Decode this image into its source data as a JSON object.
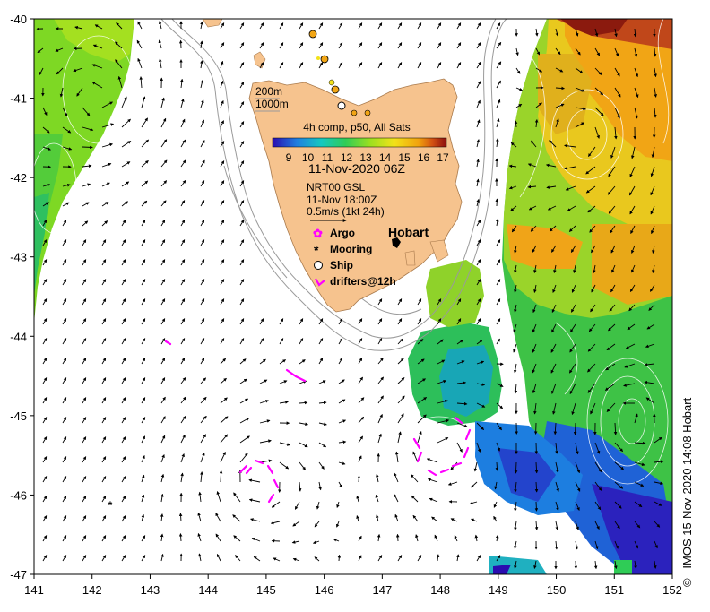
{
  "map": {
    "xaxis_ticks": [
      "141",
      "142",
      "143",
      "144",
      "145",
      "146",
      "147",
      "148",
      "149",
      "150",
      "151",
      "152"
    ],
    "yaxis_ticks": [
      "-40",
      "-41",
      "-42",
      "-43",
      "-44",
      "-45",
      "-46",
      "-47"
    ],
    "lon_range": [
      141,
      152
    ],
    "lat_range": [
      -47,
      -40
    ]
  },
  "legend": {
    "depth_200": "200m",
    "depth_1000": "1000m",
    "product_title": "4h comp, p50, All Sats",
    "colorbar_ticks": [
      "9",
      "10",
      "11",
      "12",
      "13",
      "14",
      "15",
      "16",
      "17"
    ],
    "date_label": "11-Nov-2020 06Z",
    "altimetry_label": "NRT00 GSL",
    "altimetry_time": "11-Nov 18:00Z",
    "scale_label": "0.5m/s (1kt 24h)",
    "argo_label": "Argo",
    "mooring_label": "Mooring",
    "ship_label": "Ship",
    "drifters_label": "drifters@12h"
  },
  "places": {
    "hobart": "Hobart"
  },
  "credit": "IMOS 15-Nov-2020 14:08 Hobart",
  "credit_symbol": "©",
  "colors": {
    "colorbar": [
      "#2a0cb0",
      "#1f7fe0",
      "#16c8c0",
      "#2fcc56",
      "#9be020",
      "#f2e21a",
      "#f1a20e",
      "#d25012",
      "#8a0d0e"
    ],
    "land": "#f6c38e",
    "drifter": "#ff00ff",
    "ship_fill": "#ffffff"
  }
}
